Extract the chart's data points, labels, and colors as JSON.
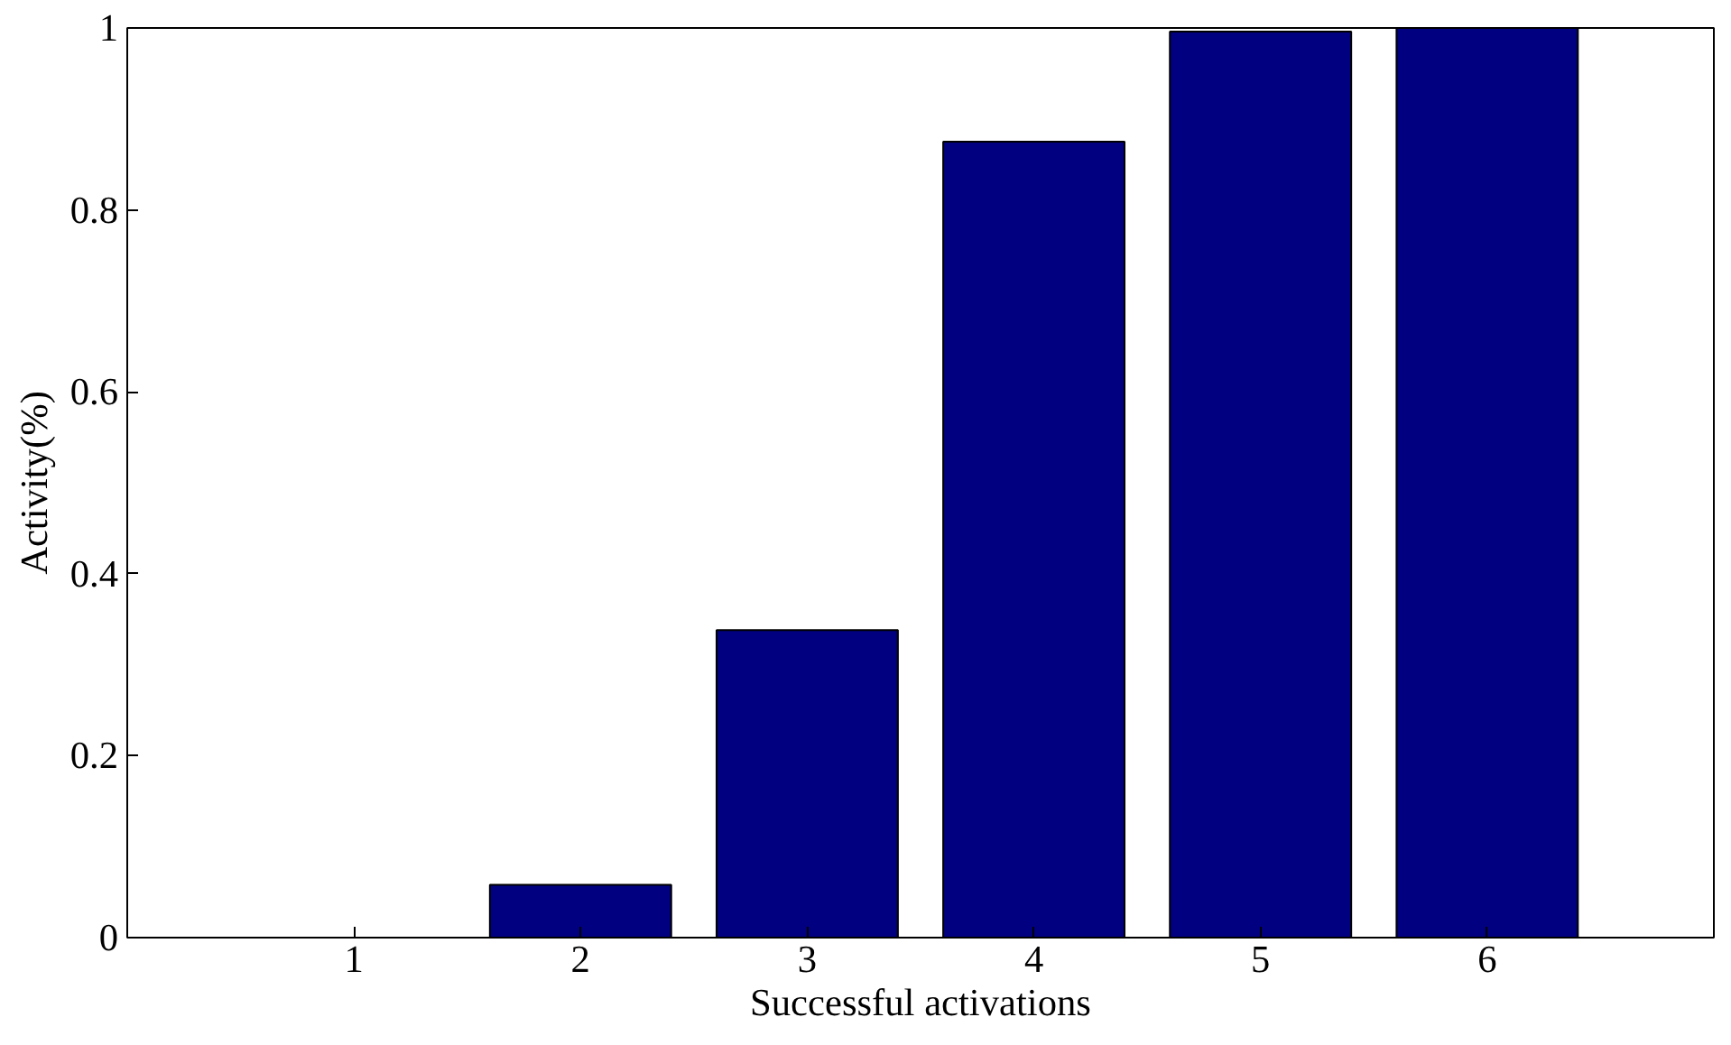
{
  "chart_data": {
    "type": "bar",
    "xlabel": "Successful activations",
    "ylabel": "Activity(%)",
    "x": [
      1,
      2,
      3,
      4,
      5,
      6
    ],
    "values": [
      0,
      0.058,
      0.338,
      0.875,
      0.996,
      1.0
    ],
    "color": "#000080",
    "xlim": [
      0,
      7
    ],
    "xticks": [
      1,
      2,
      3,
      4,
      5,
      6
    ],
    "ylim": [
      0,
      1
    ],
    "yticks": [
      0,
      0.2,
      0.4,
      0.6,
      0.8,
      1
    ],
    "grid": false
  }
}
